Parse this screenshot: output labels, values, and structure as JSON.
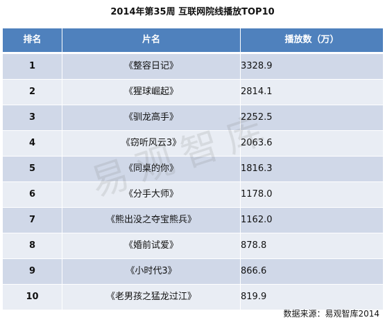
{
  "title": "2014年第35周 互联网院线播放TOP10",
  "headers": {
    "rank": "排名",
    "title": "片名",
    "views": "播放数（万）"
  },
  "chart_data": {
    "type": "table",
    "columns": [
      "排名",
      "片名",
      "播放数（万）"
    ],
    "rows": [
      {
        "rank": "1",
        "title": "《整容日记》",
        "views": "3328.9"
      },
      {
        "rank": "2",
        "title": "《猩球崛起》",
        "views": "2814.1"
      },
      {
        "rank": "3",
        "title": "《驯龙高手》",
        "views": "2252.5"
      },
      {
        "rank": "4",
        "title": "《窃听风云3》",
        "views": "2063.6"
      },
      {
        "rank": "5",
        "title": "《同桌的你》",
        "views": "1816.3"
      },
      {
        "rank": "6",
        "title": "《分手大师》",
        "views": "1178.0"
      },
      {
        "rank": "7",
        "title": "《熊出没之夺宝熊兵》",
        "views": "1162.0"
      },
      {
        "rank": "8",
        "title": "《婚前试爱》",
        "views": "878.8"
      },
      {
        "rank": "9",
        "title": "《小时代3》",
        "views": "866.6"
      },
      {
        "rank": "10",
        "title": "《老男孩之猛龙过江》",
        "views": "819.9"
      }
    ]
  },
  "watermark": "易观智库",
  "source": "数据来源：易观智库2014"
}
